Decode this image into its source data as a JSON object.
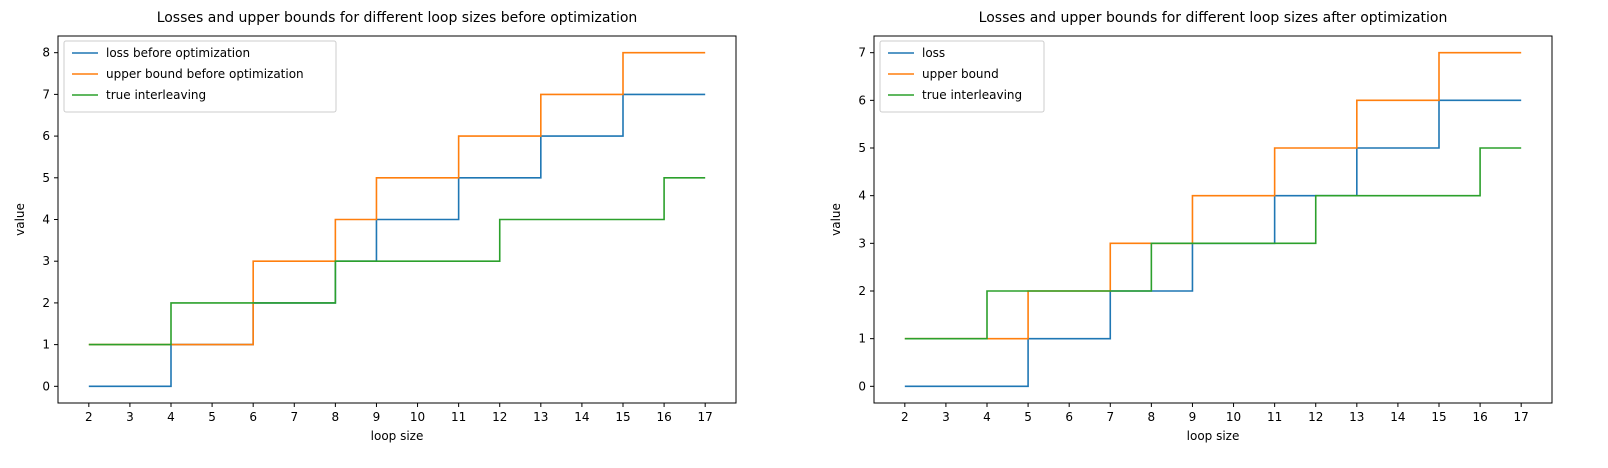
{
  "chart_data": [
    {
      "type": "line",
      "drawstyle": "steps-post",
      "title": "Losses and upper bounds for different loop sizes before optimization",
      "xlabel": "loop size",
      "ylabel": "value",
      "x": [
        2,
        3,
        4,
        5,
        6,
        7,
        8,
        9,
        10,
        11,
        12,
        13,
        14,
        15,
        16,
        17
      ],
      "xticks": [
        "2",
        "3",
        "4",
        "5",
        "6",
        "7",
        "8",
        "9",
        "10",
        "11",
        "12",
        "13",
        "14",
        "15",
        "16",
        "17"
      ],
      "yticks": [
        "0",
        "1",
        "2",
        "3",
        "4",
        "5",
        "6",
        "7",
        "8"
      ],
      "xlim": [
        1.25,
        17.75
      ],
      "ylim": [
        -0.4,
        8.4
      ],
      "legend_location": "upper left",
      "grid": false,
      "series": [
        {
          "name": "loss before optimization",
          "color": "#1f77b4",
          "values": [
            0,
            0,
            1,
            1,
            2,
            2,
            3,
            4,
            4,
            5,
            5,
            6,
            6,
            7,
            7,
            7
          ]
        },
        {
          "name": "upper bound before optimization",
          "color": "#ff7f0e",
          "values": [
            1,
            1,
            1,
            1,
            3,
            3,
            4,
            5,
            5,
            6,
            6,
            7,
            7,
            8,
            8,
            8
          ]
        },
        {
          "name": "true interleaving",
          "color": "#2ca02c",
          "values": [
            1,
            1,
            2,
            2,
            2,
            2,
            3,
            3,
            3,
            3,
            4,
            4,
            4,
            4,
            5,
            5
          ]
        }
      ]
    },
    {
      "type": "line",
      "drawstyle": "steps-post",
      "title": "Losses and upper bounds for different loop sizes after optimization",
      "xlabel": "loop size",
      "ylabel": "value",
      "x": [
        2,
        3,
        4,
        5,
        6,
        7,
        8,
        9,
        10,
        11,
        12,
        13,
        14,
        15,
        16,
        17
      ],
      "xticks": [
        "2",
        "3",
        "4",
        "5",
        "6",
        "7",
        "8",
        "9",
        "10",
        "11",
        "12",
        "13",
        "14",
        "15",
        "16",
        "17"
      ],
      "yticks": [
        "0",
        "1",
        "2",
        "3",
        "4",
        "5",
        "6",
        "7"
      ],
      "xlim": [
        1.25,
        17.75
      ],
      "ylim": [
        -0.35,
        7.35
      ],
      "legend_location": "upper left",
      "grid": false,
      "series": [
        {
          "name": "loss",
          "color": "#1f77b4",
          "values": [
            0,
            0,
            0,
            1,
            1,
            2,
            2,
            3,
            3,
            4,
            4,
            5,
            5,
            6,
            6,
            6
          ]
        },
        {
          "name": "upper bound",
          "color": "#ff7f0e",
          "values": [
            1,
            1,
            1,
            2,
            2,
            3,
            3,
            4,
            4,
            5,
            5,
            6,
            6,
            7,
            7,
            7
          ]
        },
        {
          "name": "true interleaving",
          "color": "#2ca02c",
          "values": [
            1,
            1,
            2,
            2,
            2,
            2,
            3,
            3,
            3,
            3,
            4,
            4,
            4,
            4,
            5,
            5
          ]
        }
      ]
    }
  ]
}
